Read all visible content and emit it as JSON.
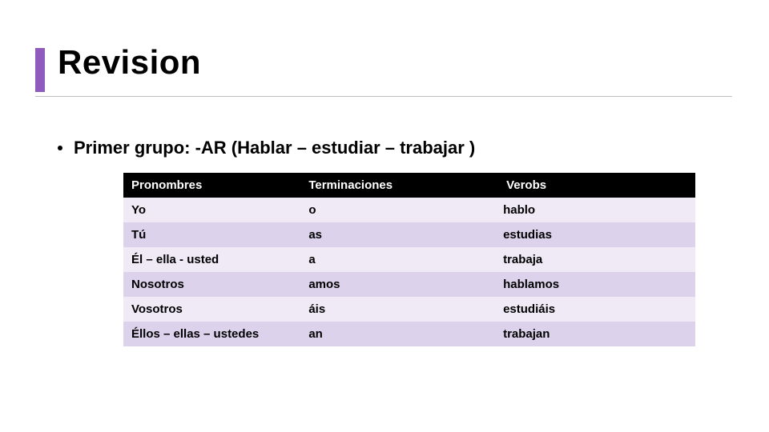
{
  "title": "Revision",
  "bullet": "Primer grupo: -AR (Hablar – estudiar – trabajar )",
  "accent_color": "#8f5bbd",
  "row_alt_a": "#efeaf6",
  "row_alt_b": "#dcd2ec",
  "header_bg": "#000000",
  "table": {
    "columns": [
      "Pronombres",
      "Terminaciones",
      "Verobs"
    ],
    "rows": [
      [
        "Yo",
        "o",
        "hablo"
      ],
      [
        "Tú",
        "as",
        "estudias"
      ],
      [
        "Él – ella - usted",
        "a",
        "trabaja"
      ],
      [
        "Nosotros",
        "amos",
        "hablamos"
      ],
      [
        "Vosotros",
        "áis",
        "estudiáis"
      ],
      [
        "Éllos – ellas – ustedes",
        "an",
        "trabajan"
      ]
    ],
    "col_widths_pct": [
      31,
      34,
      35
    ],
    "font_size_pt": 11,
    "font_weight": "bold"
  },
  "title_fontsize_pt": 32,
  "bullet_fontsize_pt": 17
}
